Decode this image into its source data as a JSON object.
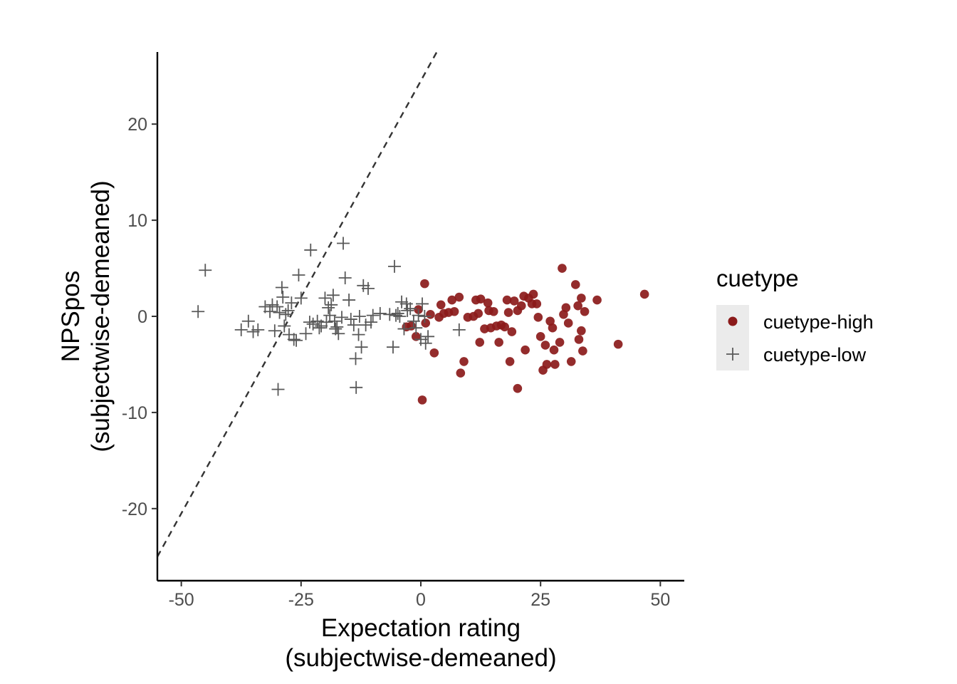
{
  "chart_data": {
    "type": "scatter",
    "xlabel": [
      "Expectation rating",
      "(subjectwise-demeaned)"
    ],
    "ylabel": [
      "NPSpos",
      "(subjectwise-demeaned)"
    ],
    "xlim": [
      -55,
      55
    ],
    "ylim": [
      -27.5,
      27.5
    ],
    "x_ticks": [
      -50,
      -25,
      0,
      25,
      50
    ],
    "y_ticks": [
      -20,
      -10,
      0,
      10,
      20
    ],
    "grid": false,
    "reference_line": {
      "style": "dashed",
      "color": "#333333",
      "slope": 0.9,
      "intercept": 24.5
    },
    "legend": {
      "title": "cuetype",
      "position": "right",
      "entries": [
        {
          "label": "cuetype-high",
          "marker": "circle",
          "color": "#8b1a1a"
        },
        {
          "label": "cuetype-low",
          "marker": "plus",
          "color": "#595959"
        }
      ]
    },
    "series": [
      {
        "name": "cuetype-high",
        "marker": "circle",
        "color": "#8b1a1a",
        "points": [
          [
            0.8,
            3.4
          ],
          [
            -0.5,
            0.7
          ],
          [
            1.0,
            -0.7
          ],
          [
            0.3,
            -8.7
          ],
          [
            -1.0,
            -2.1
          ],
          [
            -2.0,
            -1.0
          ],
          [
            -3.0,
            -1.1
          ],
          [
            2.0,
            0.2
          ],
          [
            2.8,
            -3.8
          ],
          [
            3.8,
            -0.1
          ],
          [
            4.2,
            1.2
          ],
          [
            4.8,
            0.3
          ],
          [
            5.8,
            0.4
          ],
          [
            6.5,
            1.7
          ],
          [
            7.0,
            0.5
          ],
          [
            8.0,
            2.0
          ],
          [
            8.3,
            -5.9
          ],
          [
            9.0,
            -4.7
          ],
          [
            9.8,
            -0.1
          ],
          [
            11.0,
            0.0
          ],
          [
            11.5,
            1.7
          ],
          [
            12.0,
            0.3
          ],
          [
            12.3,
            -2.7
          ],
          [
            12.5,
            1.8
          ],
          [
            13.3,
            -1.3
          ],
          [
            14.0,
            1.4
          ],
          [
            14.2,
            0.6
          ],
          [
            14.6,
            -1.2
          ],
          [
            15.2,
            0.5
          ],
          [
            15.8,
            -1.0
          ],
          [
            16.3,
            -2.7
          ],
          [
            16.8,
            -0.9
          ],
          [
            17.5,
            -1.1
          ],
          [
            18.0,
            1.7
          ],
          [
            18.3,
            0.4
          ],
          [
            18.6,
            -4.7
          ],
          [
            19.0,
            -1.6
          ],
          [
            19.5,
            1.6
          ],
          [
            20.2,
            -7.5
          ],
          [
            20.2,
            0.6
          ],
          [
            21.0,
            1.1
          ],
          [
            21.5,
            2.1
          ],
          [
            21.8,
            -3.5
          ],
          [
            22.5,
            1.9
          ],
          [
            23.2,
            1.3
          ],
          [
            23.5,
            2.3
          ],
          [
            24.2,
            1.3
          ],
          [
            24.5,
            -0.1
          ],
          [
            25.0,
            -2.1
          ],
          [
            25.5,
            -5.6
          ],
          [
            26.0,
            -3.0
          ],
          [
            26.3,
            -5.0
          ],
          [
            27.0,
            -0.5
          ],
          [
            27.5,
            -1.2
          ],
          [
            27.8,
            -3.5
          ],
          [
            28.0,
            -5.0
          ],
          [
            29.0,
            -2.7
          ],
          [
            29.5,
            5.0
          ],
          [
            29.8,
            0.2
          ],
          [
            30.3,
            0.9
          ],
          [
            30.8,
            -0.7
          ],
          [
            31.4,
            -4.7
          ],
          [
            32.3,
            3.3
          ],
          [
            32.8,
            1.1
          ],
          [
            33.0,
            -2.4
          ],
          [
            33.5,
            1.9
          ],
          [
            33.5,
            -1.5
          ],
          [
            33.8,
            -3.6
          ],
          [
            34.2,
            0.5
          ],
          [
            36.8,
            1.7
          ],
          [
            41.2,
            -2.9
          ],
          [
            46.7,
            2.3
          ]
        ]
      },
      {
        "name": "cuetype-low",
        "marker": "plus",
        "color": "#595959",
        "points": [
          [
            -46.5,
            0.5
          ],
          [
            -45.0,
            4.8
          ],
          [
            -37.5,
            -1.4
          ],
          [
            -36.0,
            -0.5
          ],
          [
            -35.0,
            -1.6
          ],
          [
            -34.0,
            -1.4
          ],
          [
            -32.5,
            1.0
          ],
          [
            -31.5,
            0.5
          ],
          [
            -31.0,
            1.2
          ],
          [
            -30.5,
            -1.5
          ],
          [
            -30.0,
            1.0
          ],
          [
            -29.8,
            -7.6
          ],
          [
            -29.5,
            0.4
          ],
          [
            -29.0,
            3.0
          ],
          [
            -28.8,
            2.0
          ],
          [
            -28.5,
            -1.0
          ],
          [
            -28.2,
            0.2
          ],
          [
            -27.7,
            0.6
          ],
          [
            -27.5,
            -1.9
          ],
          [
            -27.0,
            1.4
          ],
          [
            -26.5,
            -2.4
          ],
          [
            -26.0,
            -2.5
          ],
          [
            -25.5,
            4.3
          ],
          [
            -25.0,
            1.9
          ],
          [
            -24.0,
            -1.8
          ],
          [
            -23.2,
            -0.6
          ],
          [
            -23.0,
            6.9
          ],
          [
            -22.5,
            -0.8
          ],
          [
            -21.6,
            -0.5
          ],
          [
            -21.2,
            -1.2
          ],
          [
            -20.8,
            -1.0
          ],
          [
            -20.0,
            1.9
          ],
          [
            -19.7,
            -0.6
          ],
          [
            -19.3,
            0.9
          ],
          [
            -19.0,
            0.1
          ],
          [
            -18.7,
            1.2
          ],
          [
            -18.3,
            2.2
          ],
          [
            -18.0,
            -0.5
          ],
          [
            -17.8,
            -1.3
          ],
          [
            -17.5,
            -1.1
          ],
          [
            -17.2,
            -1.8
          ],
          [
            -16.5,
            -0.1
          ],
          [
            -16.2,
            7.6
          ],
          [
            -15.8,
            4.0
          ],
          [
            -15.0,
            1.7
          ],
          [
            -14.6,
            -0.3
          ],
          [
            -14.0,
            -0.9
          ],
          [
            -13.6,
            -4.4
          ],
          [
            -13.5,
            -7.4
          ],
          [
            -13.0,
            -1.9
          ],
          [
            -12.8,
            0.0
          ],
          [
            -12.4,
            -3.2
          ],
          [
            -12.0,
            3.2
          ],
          [
            -11.5,
            -0.9
          ],
          [
            -11.0,
            2.9
          ],
          [
            -10.4,
            -0.6
          ],
          [
            -10.0,
            0.1
          ],
          [
            -8.5,
            0.3
          ],
          [
            -6.5,
            0.2
          ],
          [
            -5.8,
            -3.2
          ],
          [
            -5.5,
            5.2
          ],
          [
            -5.2,
            0.1
          ],
          [
            -4.8,
            0.3
          ],
          [
            -4.4,
            0.0
          ],
          [
            -4.0,
            1.5
          ],
          [
            -3.5,
            -1.3
          ],
          [
            -3.0,
            1.3
          ],
          [
            -2.8,
            0.6
          ],
          [
            -2.2,
            0.8
          ],
          [
            -1.5,
            -0.5
          ],
          [
            -1.0,
            -1.2
          ],
          [
            -0.5,
            0.1
          ],
          [
            0.0,
            -2.4
          ],
          [
            0.3,
            1.3
          ],
          [
            0.8,
            0.0
          ],
          [
            1.0,
            -2.8
          ],
          [
            1.5,
            -2.1
          ],
          [
            8.0,
            -1.4
          ]
        ]
      }
    ]
  }
}
